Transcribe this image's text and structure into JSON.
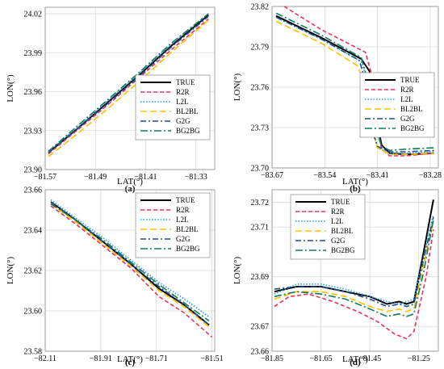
{
  "series_styles": [
    {
      "name": "TRUE",
      "color": "#000000",
      "dash": "",
      "width": 2.0
    },
    {
      "name": "R2R",
      "color": "#e8335a",
      "dash": "5,3",
      "width": 1.6
    },
    {
      "name": "L2L",
      "color": "#1f9ee8",
      "dash": "1.5,2",
      "width": 1.6
    },
    {
      "name": "BL2BL",
      "color": "#ffc000",
      "dash": "8,4",
      "width": 1.6
    },
    {
      "name": "G2G",
      "color": "#1f4e8c",
      "dash": "7,3,2,3",
      "width": 1.6
    },
    {
      "name": "BG2BG",
      "color": "#127a5e",
      "dash": "9,3,2,3",
      "width": 1.6
    }
  ],
  "chart_data": [
    {
      "type": "line",
      "panel_label": "(a)",
      "xlabel": "LAT(°)",
      "ylabel": "LON(°)",
      "xlim": [
        -81.57,
        -81.3
      ],
      "ylim": [
        23.9,
        24.025
      ],
      "xticks": [
        -81.57,
        -81.49,
        -81.41,
        -81.33
      ],
      "yticks": [
        23.9,
        23.93,
        23.96,
        23.99,
        24.02
      ],
      "xtick_labels": [
        "−81.57",
        "−81.49",
        "−81.41",
        "−81.33"
      ],
      "ytick_labels": [
        "23.90",
        "23.93",
        "23.96",
        "23.99",
        "24.02"
      ],
      "legend_position": "bottom-right",
      "series": [
        {
          "name": "TRUE",
          "x": [
            -81.565,
            -81.52,
            -81.47,
            -81.42,
            -81.37,
            -81.31
          ],
          "y": [
            23.913,
            23.931,
            23.952,
            23.973,
            23.995,
            24.019
          ]
        },
        {
          "name": "R2R",
          "x": [
            -81.565,
            -81.52,
            -81.47,
            -81.42,
            -81.37,
            -81.31
          ],
          "y": [
            23.912,
            23.93,
            23.95,
            23.971,
            23.992,
            24.016
          ]
        },
        {
          "name": "L2L",
          "x": [
            -81.565,
            -81.52,
            -81.47,
            -81.42,
            -81.37,
            -81.31
          ],
          "y": [
            23.914,
            23.932,
            23.953,
            23.974,
            23.996,
            24.02
          ]
        },
        {
          "name": "BL2BL",
          "x": [
            -81.565,
            -81.52,
            -81.47,
            -81.42,
            -81.37,
            -81.31
          ],
          "y": [
            23.91,
            23.927,
            23.947,
            23.968,
            23.99,
            24.015
          ]
        },
        {
          "name": "G2G",
          "x": [
            -81.565,
            -81.52,
            -81.47,
            -81.42,
            -81.37,
            -81.31
          ],
          "y": [
            23.913,
            23.931,
            23.951,
            23.972,
            23.994,
            24.018
          ]
        },
        {
          "name": "BG2BG",
          "x": [
            -81.565,
            -81.52,
            -81.47,
            -81.42,
            -81.37,
            -81.31
          ],
          "y": [
            23.914,
            23.933,
            23.954,
            23.975,
            23.997,
            24.02
          ]
        }
      ]
    },
    {
      "type": "line",
      "panel_label": "(b)",
      "xlabel": "LAT(°)",
      "ylabel": "LON(°)",
      "xlim": [
        -83.67,
        -83.26
      ],
      "ylim": [
        23.7,
        23.82
      ],
      "xticks": [
        -83.67,
        -83.54,
        -83.41,
        -83.28
      ],
      "yticks": [
        23.7,
        23.73,
        23.76,
        23.79,
        23.82
      ],
      "xtick_labels": [
        "−83.67",
        "−83.54",
        "−83.41",
        "−83.28"
      ],
      "ytick_labels": [
        "23.70",
        "23.73",
        "23.76",
        "23.79",
        "23.82"
      ],
      "legend_position": "top-right",
      "series": [
        {
          "name": "TRUE",
          "x": [
            -83.66,
            -83.55,
            -83.45,
            -83.43,
            -83.415,
            -83.4,
            -83.38,
            -83.34,
            -83.27
          ],
          "y": [
            23.813,
            23.797,
            23.781,
            23.772,
            23.74,
            23.717,
            23.711,
            23.71,
            23.711
          ]
        },
        {
          "name": "R2R",
          "x": [
            -83.64,
            -83.55,
            -83.44,
            -83.42,
            -83.41,
            -83.4,
            -83.38,
            -83.34,
            -83.27
          ],
          "y": [
            23.82,
            23.803,
            23.786,
            23.765,
            23.73,
            23.714,
            23.709,
            23.709,
            23.711
          ]
        },
        {
          "name": "L2L",
          "x": [
            -83.66,
            -83.55,
            -83.45,
            -83.435,
            -83.425,
            -83.41,
            -83.38,
            -83.34,
            -83.27
          ],
          "y": [
            23.812,
            23.796,
            23.779,
            23.765,
            23.735,
            23.715,
            23.711,
            23.711,
            23.712
          ]
        },
        {
          "name": "BL2BL",
          "x": [
            -83.66,
            -83.55,
            -83.46,
            -83.44,
            -83.43,
            -83.41,
            -83.38,
            -83.34,
            -83.27
          ],
          "y": [
            23.809,
            23.793,
            23.776,
            23.762,
            23.735,
            23.715,
            23.71,
            23.71,
            23.711
          ]
        },
        {
          "name": "G2G",
          "x": [
            -83.66,
            -83.55,
            -83.455,
            -83.44,
            -83.43,
            -83.41,
            -83.38,
            -83.34,
            -83.27
          ],
          "y": [
            23.812,
            23.796,
            23.78,
            23.765,
            23.735,
            23.716,
            23.712,
            23.712,
            23.713
          ]
        },
        {
          "name": "BG2BG",
          "x": [
            -83.66,
            -83.55,
            -83.45,
            -83.435,
            -83.42,
            -83.4,
            -83.38,
            -83.34,
            -83.27
          ],
          "y": [
            23.815,
            23.799,
            23.782,
            23.766,
            23.735,
            23.716,
            23.713,
            23.714,
            23.715
          ]
        }
      ]
    },
    {
      "type": "line",
      "panel_label": "(c)",
      "xlabel": "LAT(°)",
      "ylabel": "LON(°)",
      "xlim": [
        -82.11,
        -81.5
      ],
      "ylim": [
        23.58,
        23.66
      ],
      "xticks": [
        -82.11,
        -81.91,
        -81.71,
        -81.51
      ],
      "yticks": [
        23.58,
        23.6,
        23.62,
        23.64,
        23.66
      ],
      "xtick_labels": [
        "−82.11",
        "−81.91",
        "−81.71",
        "−81.51"
      ],
      "ytick_labels": [
        "23.58",
        "23.60",
        "23.62",
        "23.64",
        "23.66"
      ],
      "legend_position": "top-right",
      "series": [
        {
          "name": "TRUE",
          "x": [
            -82.09,
            -82.0,
            -81.9,
            -81.8,
            -81.7,
            -81.61,
            -81.52
          ],
          "y": [
            23.654,
            23.645,
            23.634,
            23.623,
            23.611,
            23.603,
            23.593
          ]
        },
        {
          "name": "R2R",
          "x": [
            -82.09,
            -82.0,
            -81.9,
            -81.8,
            -81.7,
            -81.61,
            -81.51
          ],
          "y": [
            23.652,
            23.643,
            23.632,
            23.621,
            23.607,
            23.599,
            23.587
          ]
        },
        {
          "name": "L2L",
          "x": [
            -82.09,
            -82.0,
            -81.9,
            -81.8,
            -81.7,
            -81.61,
            -81.52
          ],
          "y": [
            23.655,
            23.646,
            23.636,
            23.625,
            23.614,
            23.606,
            23.597
          ]
        },
        {
          "name": "BL2BL",
          "x": [
            -82.09,
            -82.0,
            -81.9,
            -81.8,
            -81.7,
            -81.61,
            -81.52
          ],
          "y": [
            23.653,
            23.644,
            23.633,
            23.622,
            23.61,
            23.602,
            23.592
          ]
        },
        {
          "name": "G2G",
          "x": [
            -82.09,
            -82.0,
            -81.9,
            -81.8,
            -81.7,
            -81.61,
            -81.52
          ],
          "y": [
            23.654,
            23.645,
            23.634,
            23.623,
            23.612,
            23.603,
            23.593
          ]
        },
        {
          "name": "BG2BG",
          "x": [
            -82.09,
            -82.0,
            -81.9,
            -81.8,
            -81.7,
            -81.61,
            -81.52
          ],
          "y": [
            23.653,
            23.645,
            23.635,
            23.624,
            23.613,
            23.604,
            23.595
          ]
        }
      ]
    },
    {
      "type": "line",
      "panel_label": "(d)",
      "xlabel": "LAT(°)",
      "ylabel": "LON(°)",
      "xlim": [
        -81.85,
        -81.17
      ],
      "ylim": [
        23.66,
        23.725
      ],
      "xticks": [
        -81.85,
        -81.65,
        -81.45,
        -81.25
      ],
      "yticks": [
        23.66,
        23.67,
        23.69,
        23.71,
        23.72
      ],
      "xtick_labels": [
        "−81.85",
        "−81.65",
        "−81.45",
        "−81.25"
      ],
      "ytick_labels": [
        "23.66",
        "23.67",
        "23.69",
        "23.71",
        "23.72"
      ],
      "legend_position": "top-center",
      "series": [
        {
          "name": "TRUE",
          "x": [
            -81.84,
            -81.75,
            -81.65,
            -81.55,
            -81.45,
            -81.38,
            -81.33,
            -81.3,
            -81.27,
            -81.23,
            -81.19
          ],
          "y": [
            23.684,
            23.686,
            23.686,
            23.684,
            23.682,
            23.679,
            23.68,
            23.679,
            23.68,
            23.7,
            23.721
          ]
        },
        {
          "name": "R2R",
          "x": [
            -81.84,
            -81.78,
            -81.7,
            -81.6,
            -81.5,
            -81.42,
            -81.35,
            -81.3,
            -81.27,
            -81.22,
            -81.19
          ],
          "y": [
            23.678,
            23.682,
            23.683,
            23.68,
            23.676,
            23.672,
            23.667,
            23.665,
            23.668,
            23.69,
            23.709
          ]
        },
        {
          "name": "L2L",
          "x": [
            -81.84,
            -81.75,
            -81.65,
            -81.55,
            -81.45,
            -81.38,
            -81.33,
            -81.3,
            -81.27,
            -81.23,
            -81.19
          ],
          "y": [
            23.683,
            23.687,
            23.687,
            23.685,
            23.682,
            23.68,
            23.679,
            23.68,
            23.681,
            23.698,
            23.715
          ]
        },
        {
          "name": "BL2BL",
          "x": [
            -81.84,
            -81.75,
            -81.65,
            -81.55,
            -81.45,
            -81.38,
            -81.33,
            -81.3,
            -81.27,
            -81.23,
            -81.19
          ],
          "y": [
            23.681,
            23.684,
            23.684,
            23.682,
            23.678,
            23.676,
            23.677,
            23.676,
            23.677,
            23.695,
            23.712
          ]
        },
        {
          "name": "G2G",
          "x": [
            -81.84,
            -81.75,
            -81.65,
            -81.55,
            -81.45,
            -81.38,
            -81.33,
            -81.3,
            -81.27,
            -81.23,
            -81.19
          ],
          "y": [
            23.685,
            23.686,
            23.686,
            23.684,
            23.681,
            23.678,
            23.679,
            23.678,
            23.679,
            23.697,
            23.714
          ]
        },
        {
          "name": "BG2BG",
          "x": [
            -81.84,
            -81.75,
            -81.65,
            -81.55,
            -81.45,
            -81.38,
            -81.33,
            -81.3,
            -81.27,
            -81.23,
            -81.19
          ],
          "y": [
            23.682,
            23.684,
            23.683,
            23.681,
            23.677,
            23.674,
            23.675,
            23.674,
            23.675,
            23.692,
            23.713
          ]
        }
      ]
    }
  ]
}
